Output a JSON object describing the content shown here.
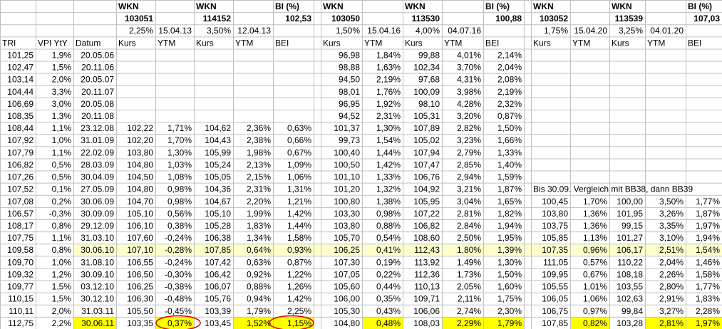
{
  "table": {
    "header_rows": [
      [
        null,
        null,
        null,
        "WKN",
        null,
        "WKN",
        null,
        "BI (%)",
        "WKN",
        null,
        "WKN",
        null,
        "BI (%)",
        "WKN",
        null,
        "WKN",
        null,
        "BI (%)"
      ],
      [
        null,
        null,
        null,
        "103051",
        null,
        "114152",
        null,
        "102,53",
        "103050",
        null,
        "113530",
        null,
        "100,88",
        "103052",
        null,
        "113539",
        null,
        "107,03"
      ],
      [
        null,
        null,
        null,
        "2,25%",
        "15.04.13",
        "3,50%",
        "12.04.13",
        null,
        "1,50%",
        "15.04.16",
        "4,00%",
        "04.07.16",
        null,
        "1,75%",
        "15.04.20",
        "3,25%",
        "04.01.20",
        null
      ],
      [
        "TRI",
        "VPI YtY",
        "Datum",
        "Kurs",
        "YTM",
        "Kurs",
        "YTM",
        "BEI",
        "Kurs",
        "YTM",
        "Kurs",
        "YTM",
        "BEI",
        "Kurs",
        "YTM",
        "Kurs",
        "YTM",
        "BEI"
      ]
    ],
    "rows": [
      [
        "101,25",
        "1,9%",
        "20.05.06",
        null,
        null,
        null,
        null,
        null,
        "96,98",
        "1,84%",
        "99,88",
        "4,01%",
        "2,14%",
        null,
        null,
        null,
        null,
        null
      ],
      [
        "102,47",
        "1,5%",
        "20.11.06",
        null,
        null,
        null,
        null,
        null,
        "98,88",
        "1,63%",
        "102,34",
        "3,70%",
        "2,04%",
        null,
        null,
        null,
        null,
        null
      ],
      [
        "103,14",
        "2,0%",
        "20.05.07",
        null,
        null,
        null,
        null,
        null,
        "94,50",
        "2,19%",
        "97,68",
        "4,31%",
        "2,08%",
        null,
        null,
        null,
        null,
        null
      ],
      [
        "104,44",
        "3,3%",
        "20.11.07",
        null,
        null,
        null,
        null,
        null,
        "98,01",
        "1,76%",
        "100,09",
        "3,98%",
        "2,19%",
        null,
        null,
        null,
        null,
        null
      ],
      [
        "106,69",
        "3,0%",
        "20.05.08",
        null,
        null,
        null,
        null,
        null,
        "96,95",
        "1,92%",
        "98,10",
        "4,28%",
        "2,32%",
        null,
        null,
        null,
        null,
        null
      ],
      [
        "108,35",
        "1,3%",
        "20.11.08",
        null,
        null,
        null,
        null,
        null,
        "94,52",
        "2,31%",
        "105,31",
        "3,20%",
        "0,87%",
        null,
        null,
        null,
        null,
        null
      ],
      [
        "108,44",
        "1,1%",
        "23.12.08",
        "102,22",
        "1,71%",
        "104,62",
        "2,36%",
        "0,63%",
        "101,37",
        "1,30%",
        "107,89",
        "2,82%",
        "1,50%",
        null,
        null,
        null,
        null,
        null
      ],
      [
        "107,92",
        "1,0%",
        "31.01.09",
        "102,20",
        "1,70%",
        "104,43",
        "2,38%",
        "0,66%",
        "99,73",
        "1,54%",
        "105,02",
        "3,23%",
        "1,66%",
        null,
        null,
        null,
        null,
        null
      ],
      [
        "107,79",
        "1,1%",
        "22.02.09",
        "103,80",
        "1,30%",
        "105,99",
        "1,98%",
        "0,67%",
        "100,40",
        "1,44%",
        "107,94",
        "2,79%",
        "1,33%",
        null,
        null,
        null,
        null,
        null
      ],
      [
        "106,82",
        "0,5%",
        "28.03.09",
        "104,80",
        "1,03%",
        "105,24",
        "2,13%",
        "1,09%",
        "100,50",
        "1,42%",
        "107,47",
        "2,85%",
        "1,40%",
        null,
        null,
        null,
        null,
        null
      ],
      [
        "107,26",
        "0,5%",
        "30.04.09",
        "104,50",
        "1,08%",
        "105,05",
        "2,15%",
        "1,06%",
        "101,10",
        "1,33%",
        "106,76",
        "2,94%",
        "1,59%",
        null,
        null,
        null,
        null,
        null
      ],
      [
        "107,52",
        "0,1%",
        "27.05.09",
        "104,80",
        "0,98%",
        "104,36",
        "2,31%",
        "1,31%",
        "101,20",
        "1,32%",
        "104,92",
        "3,21%",
        "1,87%",
        "Bis 30.09. Vergleich mit BB38, dann BB39",
        null,
        null,
        null,
        null
      ],
      [
        "107,08",
        "0,2%",
        "30.06.09",
        "104,70",
        "0,98%",
        "104,67",
        "2,20%",
        "1,21%",
        "100,80",
        "1,38%",
        "105,95",
        "3,04%",
        "1,65%",
        "100,45",
        "1,70%",
        "100,00",
        "3,50%",
        "1,77%"
      ],
      [
        "106,57",
        "-0,3%",
        "30.09.09",
        "105,10",
        "0,56%",
        "105,10",
        "1,99%",
        "1,42%",
        "103,30",
        "0,98%",
        "107,22",
        "2,81%",
        "1,82%",
        "103,80",
        "1,36%",
        "101,95",
        "3,26%",
        "1,87%"
      ],
      [
        "108,17",
        "0,8%",
        "29.12.09",
        "106,10",
        "0,38%",
        "105,28",
        "1,83%",
        "1,44%",
        "103,80",
        "0,88%",
        "106,82",
        "2,84%",
        "1,94%",
        "103,75",
        "1,36%",
        "99,15",
        "3,35%",
        "1,97%"
      ],
      [
        "107,75",
        "1,1%",
        "31.03.10",
        "107,60",
        "-0,24%",
        "106,38",
        "1,34%",
        "1,58%",
        "105,70",
        "0,54%",
        "108,60",
        "2,50%",
        "1,95%",
        "105,85",
        "1,13%",
        "101,27",
        "3,10%",
        "1,94%"
      ],
      [
        "109,58",
        "0,8%",
        "30.06.10",
        "107,10",
        "-0,28%",
        "107,85",
        "0,64%",
        "0,93%",
        "106,25",
        "0,41%",
        "112,43",
        "1,80%",
        "1,39%",
        "107,35",
        "0,96%",
        "106,17",
        "2,51%",
        "1,54%"
      ],
      [
        "109,70",
        "1,0%",
        "31.08.10",
        "106,55",
        "-0,24%",
        "107,42",
        "0,63%",
        "0,87%",
        "107,30",
        "0,19%",
        "113,92",
        "1,49%",
        "1,30%",
        "111,05",
        "0,57%",
        "110,22",
        "2,04%",
        "1,46%"
      ],
      [
        "109,32",
        "1,2%",
        "30.09.10",
        "106,50",
        "-0,30%",
        "106,42",
        "0,92%",
        "1,22%",
        "107,05",
        "0,22%",
        "112,36",
        "1,73%",
        "1,50%",
        "109,95",
        "0,67%",
        "108,18",
        "2,26%",
        "1,58%"
      ],
      [
        "109,77",
        "1,5%",
        "03.12.10",
        "106,25",
        "-0,38%",
        "106,07",
        "0,88%",
        "1,26%",
        "105,60",
        "0,44%",
        "110,13",
        "2,05%",
        "1,60%",
        "105,55",
        "1,01%",
        "103,55",
        "2,80%",
        "1,77%"
      ],
      [
        "110,15",
        "1,5%",
        "30.12.10",
        "106,30",
        "-0,48%",
        "105,76",
        "0,94%",
        "1,42%",
        "106,00",
        "0,35%",
        "109,71",
        "2,11%",
        "1,75%",
        "106,05",
        "1,06%",
        "102,63",
        "2,91%",
        "1,83%"
      ],
      [
        "110,11",
        "2,0%",
        "31.03.11",
        "105,50",
        "-0,45%",
        "103,39",
        "1,79%",
        "2,25%",
        "105,30",
        "0,43%",
        "106,06",
        "2,74%",
        "2,30%",
        "106,75",
        "0,97%",
        "99,84",
        "3,27%",
        "2,28%"
      ],
      [
        "112,75",
        "2,2%",
        "30.06.11",
        "103,35",
        "0,37%",
        "103,45",
        "1,52%",
        "1,15%",
        "104,80",
        "0,48%",
        "108,03",
        "2,29%",
        "1,79%",
        "107,85",
        "0,82%",
        "103,28",
        "2,81%",
        "1,97%"
      ]
    ]
  }
}
